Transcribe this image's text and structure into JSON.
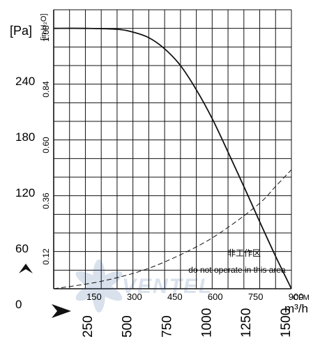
{
  "chart_data": {
    "type": "line",
    "title": "",
    "units": {
      "pressure_left": "[Pa]",
      "pressure_right": "[in.H₂O]",
      "flow_top": "CFM",
      "flow_bottom": "m³/h"
    },
    "y_left_ticks": [
      "0",
      "60",
      "120",
      "180",
      "240"
    ],
    "y_right_ticks": [
      "0.12",
      "0.36",
      "0.60",
      "0.84",
      "1.08"
    ],
    "x_top_ticks": [
      "150",
      "300",
      "450",
      "600",
      "750",
      "900"
    ],
    "x_bottom_ticks": [
      "250",
      "500",
      "750",
      "1000",
      "1250",
      "1500"
    ],
    "xlim_m3h": [
      0,
      1500
    ],
    "ylim_pa": [
      0,
      300
    ],
    "grid": true,
    "series": [
      {
        "style": "solid",
        "x": [
          0,
          200,
          400,
          500,
          600,
          700,
          800,
          900,
          1000,
          1100,
          1200,
          1300,
          1400,
          1500
        ],
        "y": [
          280,
          280,
          279,
          276,
          270,
          258,
          240,
          214,
          183,
          147,
          110,
          72,
          35,
          0
        ]
      },
      {
        "style": "dashed",
        "x": [
          0,
          300,
          600,
          900,
          1100,
          1300,
          1400,
          1500
        ],
        "y": [
          0,
          8,
          22,
          45,
          66,
          92,
          110,
          128
        ]
      }
    ],
    "annotations": {
      "zone_cn": "非工作区",
      "zone_en": "do not operate in this area"
    },
    "watermark": "VENTEL"
  }
}
